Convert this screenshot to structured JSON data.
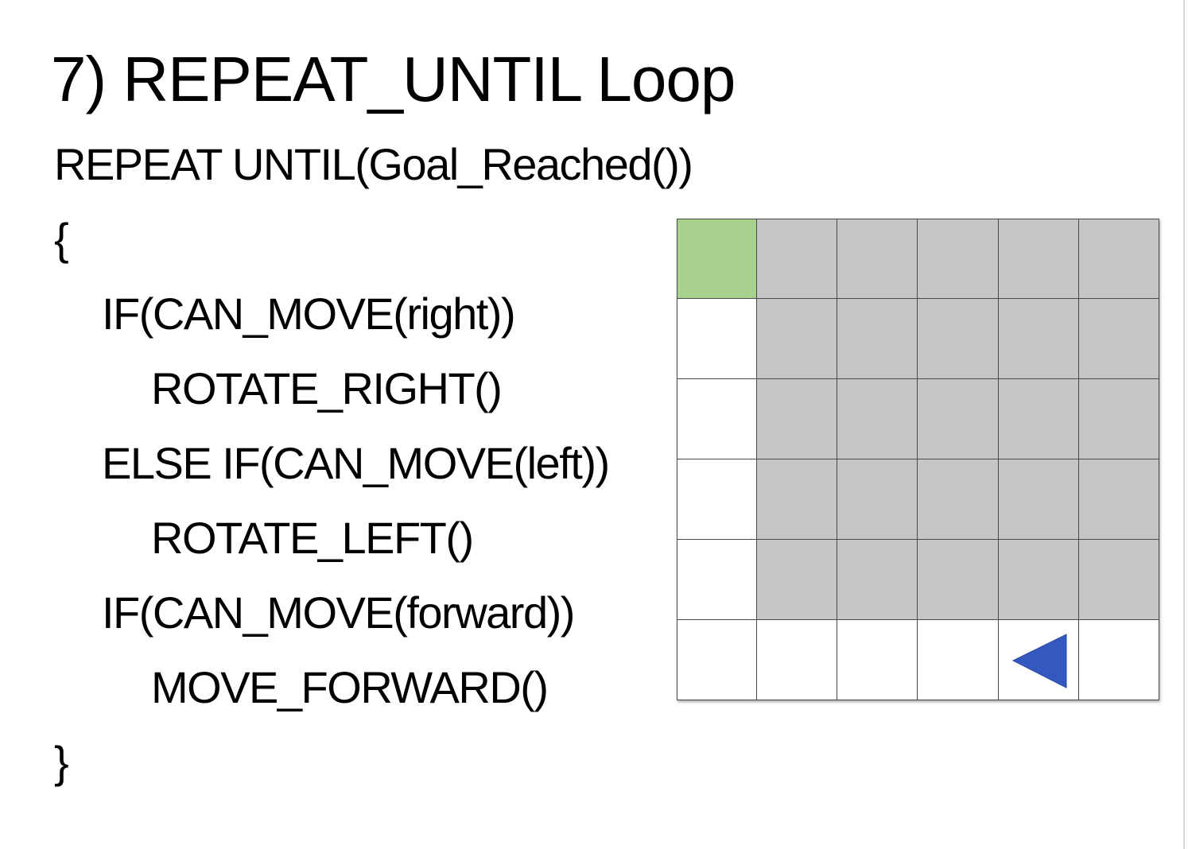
{
  "slide": {
    "title": "7) REPEAT_UNTIL Loop",
    "code_lines": [
      "REPEAT UNTIL(Goal_Reached())",
      "{",
      "IF(CAN_MOVE(right))",
      "ROTATE_RIGHT()",
      "ELSE IF(CAN_MOVE(left))",
      "ROTATE_LEFT()",
      "IF(CAN_MOVE(forward))",
      "MOVE_FORWARD()",
      "}"
    ]
  },
  "maze": {
    "rows": 6,
    "cols": 6,
    "cells": [
      [
        "goal",
        "wall",
        "wall",
        "wall",
        "wall",
        "wall"
      ],
      [
        "open",
        "wall",
        "wall",
        "wall",
        "wall",
        "wall"
      ],
      [
        "open",
        "wall",
        "wall",
        "wall",
        "wall",
        "wall"
      ],
      [
        "open",
        "wall",
        "wall",
        "wall",
        "wall",
        "wall"
      ],
      [
        "open",
        "wall",
        "wall",
        "wall",
        "wall",
        "wall"
      ],
      [
        "open",
        "open",
        "open",
        "open",
        "open",
        "open"
      ]
    ],
    "robot": {
      "row": 5,
      "col": 4,
      "facing": "left"
    },
    "colors": {
      "goal": "#a9d18e",
      "wall": "#c6c6c6",
      "open": "#ffffff",
      "robot": "#3358c0"
    }
  }
}
